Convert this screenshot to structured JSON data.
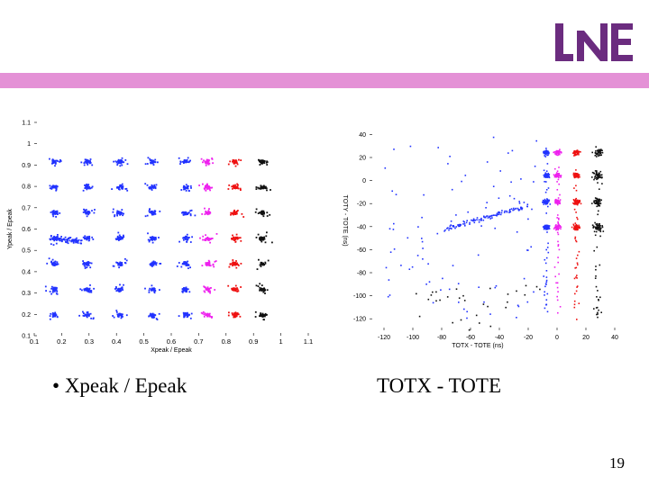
{
  "slide": {
    "caption_left": "Xpeak / Epeak",
    "caption_right": "TOTX - TOTE",
    "page_number": "19",
    "bullet": "•",
    "logo_text": "LNE",
    "band_color": "#e491d6",
    "logo_color": "#6b2c7f"
  },
  "chart_data": [
    {
      "type": "scatter",
      "xlabel": "Xpeak / Epeak",
      "ylabel": "Ypeak / Epeak",
      "xlim": [
        0.1,
        1.1
      ],
      "ylim": [
        0.1,
        1.1
      ],
      "xticks": [
        "0.1",
        "0.2",
        "0.3",
        "0.4",
        "0.5",
        "0.6",
        "0.7",
        "0.8",
        "0.9",
        "1",
        "1.1"
      ],
      "yticks": [
        "0.1",
        "0.2",
        "0.3",
        "0.4",
        "0.5",
        "0.6",
        "0.7",
        "0.8",
        "0.9",
        "1",
        "1.1"
      ],
      "grid": false,
      "series_colors": [
        "#2233ff",
        "#ee22ee",
        "#ee1111",
        "#111111"
      ],
      "clusters": {
        "blue_x": [
          0.17,
          0.29,
          0.41,
          0.53,
          0.65
        ],
        "magenta_x": [
          0.73
        ],
        "red_x": [
          0.83
        ],
        "black_x": [
          0.93
        ],
        "y": [
          0.2,
          0.32,
          0.44,
          0.56,
          0.68,
          0.8,
          0.92
        ]
      }
    },
    {
      "type": "scatter",
      "xlabel": "TOTX - TOTE (ns)",
      "ylabel": "TOTY - TOTE (ns)",
      "xlim": [
        -130,
        45
      ],
      "ylim": [
        -130,
        45
      ],
      "xticks": [
        "-120",
        "-100",
        "-80",
        "-60",
        "-40",
        "-20",
        "0",
        "20",
        "40"
      ],
      "yticks": [
        "40",
        "20",
        "0",
        "-20",
        "-40",
        "-60",
        "-80",
        "-100",
        "-120"
      ],
      "grid": false,
      "series_colors": [
        "#2233ff",
        "#ee22ee",
        "#ee1111",
        "#111111"
      ],
      "clusters": {
        "blue_x": [
          -8
        ],
        "magenta_x": [
          0
        ],
        "red_x": [
          13
        ],
        "black_x": [
          28
        ],
        "y": [
          25,
          5,
          -18,
          -40
        ]
      }
    }
  ]
}
